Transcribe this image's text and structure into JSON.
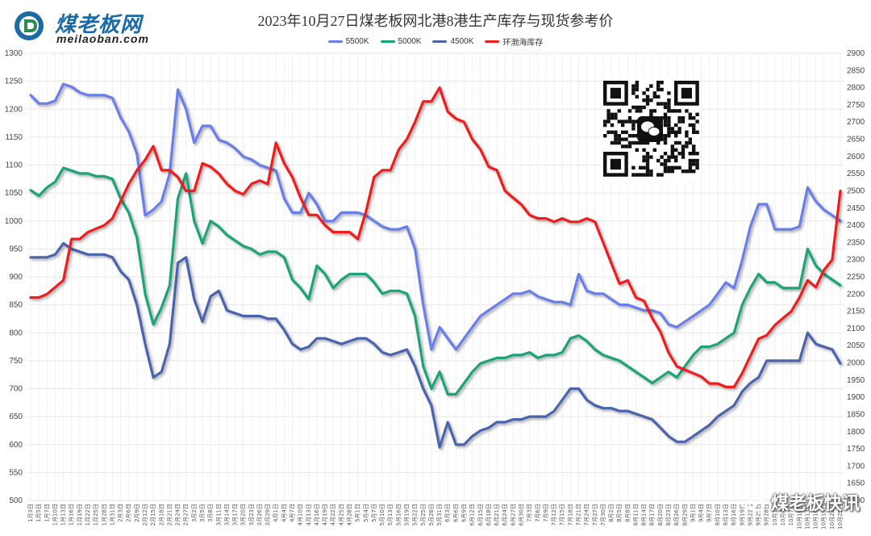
{
  "logo": {
    "text_cn": "煤老板网",
    "text_en": "meilaoban.com"
  },
  "watermark": {
    "text": "煤老板快讯",
    "icon": "wechat-icon"
  },
  "qr": {
    "icon": "wechat-qr-icon"
  },
  "chart_data": {
    "type": "line",
    "title": "2023年10月27日煤老板网北港8港生产库存与现货参考价",
    "x_categories": [
      "1月3日",
      "1月5日",
      "1月7日",
      "1月10日",
      "1月13日",
      "1月16日",
      "1月19日",
      "1月22日",
      "1月25日",
      "1月28日",
      "1月31日",
      "2月3日",
      "2月6日",
      "2月9日",
      "2月12日",
      "2月15日",
      "2月18日",
      "2月21日",
      "2月24日",
      "2月27日",
      "3月2日",
      "3月5日",
      "3月8日",
      "3月11日",
      "3月14日",
      "3月17日",
      "3月20日",
      "3月23日",
      "3月26日",
      "3月29日",
      "4月1日",
      "4月4日",
      "4月7日",
      "4月10日",
      "4月13日",
      "4月16日",
      "4月19日",
      "4月22日",
      "4月25日",
      "4月28日",
      "5月1日",
      "5月4日",
      "5月7日",
      "5月10日",
      "5月13日",
      "5月16日",
      "5月19日",
      "5月22日",
      "5月25日",
      "5月28日",
      "5月31日",
      "6月3日",
      "6月6日",
      "6月9日",
      "6月12日",
      "6月15日",
      "6月18日",
      "6月21日",
      "6月24日",
      "6月27日",
      "6月30日",
      "7月3日",
      "7月6日",
      "7月9日",
      "7月12日",
      "7月15日",
      "7月18日",
      "7月21日",
      "7月24日",
      "7月27日",
      "7月30日",
      "8月2日",
      "8月5日",
      "8月8日",
      "8月11日",
      "8月14日",
      "8月17日",
      "8月20日",
      "8月23日",
      "8月26日",
      "8月29日",
      "9月1日",
      "9月4日",
      "9月7日",
      "9月10日",
      "9月13日",
      "9月16日",
      "9月19日",
      "9月22日",
      "9月25日",
      "9月28日",
      "10月1日",
      "10月4日",
      "10月7日",
      "10月10日",
      "10月13日",
      "10月16日",
      "10月19日",
      "10月22日",
      "10月25日"
    ],
    "y_left": {
      "min": 500,
      "max": 1300,
      "step": 50,
      "ticks": [
        "500",
        "550",
        "600",
        "650",
        "700",
        "750",
        "800",
        "850",
        "900",
        "950",
        "1000",
        "1050",
        "1100",
        "1150",
        "1200",
        "1250",
        "1300"
      ]
    },
    "y_right": {
      "min": 1600,
      "max": 2900,
      "step": 50,
      "ticks": [
        "1600",
        "1650",
        "1700",
        "1750",
        "1800",
        "1850",
        "1900",
        "1950",
        "2000",
        "2050",
        "2100",
        "2150",
        "2200",
        "2250",
        "2300",
        "2350",
        "2400",
        "2450",
        "2500",
        "2550",
        "2600",
        "2650",
        "2700",
        "2750",
        "2800",
        "2850",
        "2900"
      ]
    },
    "grid": true,
    "legend_position": "top-center",
    "series": [
      {
        "name": "5500K",
        "axis": "left",
        "color": "#6b7ee8",
        "values": [
          1225,
          1210,
          1210,
          1215,
          1245,
          1240,
          1230,
          1225,
          1225,
          1225,
          1220,
          1185,
          1160,
          1120,
          1010,
          1020,
          1035,
          1085,
          1235,
          1200,
          1140,
          1170,
          1170,
          1145,
          1140,
          1130,
          1115,
          1110,
          1100,
          1095,
          1090,
          1040,
          1015,
          1015,
          1050,
          1030,
          1000,
          1000,
          1015,
          1015,
          1015,
          1010,
          1000,
          990,
          985,
          985,
          990,
          950,
          850,
          770,
          810,
          790,
          770,
          790,
          810,
          830,
          840,
          850,
          860,
          870,
          870,
          875,
          865,
          860,
          855,
          855,
          850,
          905,
          875,
          870,
          870,
          860,
          850,
          850,
          845,
          840,
          840,
          835,
          815,
          810,
          820,
          830,
          840,
          850,
          870,
          890,
          880,
          930,
          990,
          1030,
          1030,
          985,
          985,
          985,
          990,
          1060,
          1035,
          1020,
          1010,
          1000
        ]
      },
      {
        "name": "5000K",
        "axis": "left",
        "color": "#1aa37a",
        "values": [
          1055,
          1045,
          1060,
          1070,
          1095,
          1090,
          1085,
          1085,
          1080,
          1080,
          1075,
          1040,
          1015,
          970,
          870,
          815,
          845,
          885,
          1040,
          1085,
          1000,
          960,
          1000,
          990,
          975,
          965,
          955,
          950,
          940,
          945,
          945,
          935,
          895,
          880,
          860,
          920,
          905,
          880,
          895,
          905,
          905,
          905,
          890,
          870,
          875,
          875,
          870,
          830,
          740,
          700,
          730,
          690,
          690,
          710,
          730,
          745,
          750,
          755,
          755,
          760,
          760,
          765,
          755,
          760,
          760,
          765,
          790,
          795,
          785,
          770,
          760,
          755,
          750,
          740,
          730,
          720,
          710,
          720,
          730,
          720,
          740,
          760,
          775,
          775,
          780,
          790,
          800,
          850,
          880,
          905,
          890,
          890,
          880,
          880,
          880,
          950,
          920,
          905,
          895,
          885
        ]
      },
      {
        "name": "4500K",
        "axis": "left",
        "color": "#4a64ad",
        "values": [
          935,
          935,
          935,
          940,
          960,
          950,
          945,
          940,
          940,
          940,
          935,
          910,
          895,
          850,
          780,
          720,
          730,
          780,
          925,
          935,
          860,
          820,
          865,
          875,
          840,
          835,
          830,
          830,
          830,
          825,
          825,
          805,
          780,
          770,
          775,
          790,
          790,
          785,
          780,
          785,
          790,
          790,
          780,
          765,
          760,
          765,
          770,
          740,
          700,
          670,
          595,
          640,
          600,
          600,
          615,
          625,
          630,
          640,
          640,
          645,
          645,
          650,
          650,
          650,
          660,
          680,
          700,
          700,
          680,
          670,
          665,
          665,
          660,
          660,
          655,
          650,
          645,
          630,
          615,
          605,
          605,
          615,
          625,
          635,
          650,
          660,
          670,
          695,
          710,
          720,
          750,
          750,
          750,
          750,
          750,
          800,
          780,
          775,
          770,
          745
        ]
      },
      {
        "name": "环渤海库存",
        "axis": "right",
        "color": "#ee1f1f",
        "values": [
          2190,
          2190,
          2200,
          2220,
          2240,
          2360,
          2360,
          2380,
          2390,
          2400,
          2420,
          2470,
          2520,
          2560,
          2590,
          2630,
          2560,
          2560,
          2540,
          2500,
          2500,
          2580,
          2570,
          2550,
          2520,
          2500,
          2490,
          2520,
          2530,
          2520,
          2640,
          2580,
          2540,
          2480,
          2430,
          2430,
          2400,
          2380,
          2380,
          2380,
          2360,
          2440,
          2540,
          2560,
          2560,
          2620,
          2650,
          2700,
          2760,
          2760,
          2800,
          2730,
          2710,
          2700,
          2650,
          2620,
          2570,
          2560,
          2500,
          2480,
          2460,
          2430,
          2420,
          2420,
          2410,
          2420,
          2410,
          2410,
          2420,
          2410,
          2350,
          2290,
          2230,
          2240,
          2190,
          2180,
          2130,
          2090,
          2030,
          1990,
          1980,
          1970,
          1960,
          1940,
          1940,
          1930,
          1930,
          1970,
          2020,
          2070,
          2080,
          2110,
          2130,
          2150,
          2190,
          2240,
          2220,
          2270,
          2300,
          2500
        ]
      }
    ]
  }
}
